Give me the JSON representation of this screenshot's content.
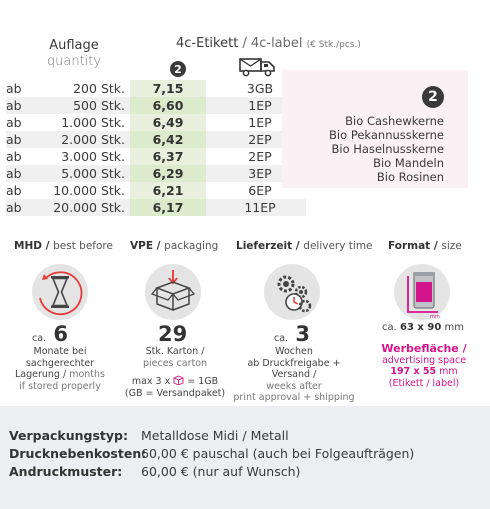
{
  "header": {
    "qty_de": "Auflage",
    "qty_en": "quantity",
    "label_de": "4c-Etikett",
    "label_sep": " / ",
    "label_en": "4c-label",
    "label_unit": "(€ Stk./pcs.)",
    "marker": "2"
  },
  "rows": [
    {
      "ab": "ab",
      "qty": "200 Stk.",
      "price": "7,15",
      "ship": "3GB"
    },
    {
      "ab": "ab",
      "qty": "500 Stk.",
      "price": "6,60",
      "ship": "1EP"
    },
    {
      "ab": "ab",
      "qty": "1.000 Stk.",
      "price": "6,49",
      "ship": "1EP"
    },
    {
      "ab": "ab",
      "qty": "2.000 Stk.",
      "price": "6,42",
      "ship": "2EP"
    },
    {
      "ab": "ab",
      "qty": "3.000 Stk.",
      "price": "6,37",
      "ship": "2EP"
    },
    {
      "ab": "ab",
      "qty": "5.000 Stk.",
      "price": "6,29",
      "ship": "3EP"
    },
    {
      "ab": "ab",
      "qty": "10.000 Stk.",
      "price": "6,21",
      "ship": "6EP"
    },
    {
      "ab": "ab",
      "qty": "20.000 Stk.",
      "price": "6,17",
      "ship": "11EP"
    }
  ],
  "ingredients": {
    "marker": "2",
    "items": [
      "Bio Cashewkerne",
      "Bio Pekannusskerne",
      "Bio Haselnusskerne",
      "Bio Mandeln",
      "Bio Rosinen"
    ]
  },
  "mhd": {
    "title_de": "MHD",
    "title_en": "best before",
    "ca": "ca.",
    "value": "6",
    "l1": "Monate bei",
    "l2": "sachgerechter",
    "l3_de": "Lagerung /",
    "l3_en": "months",
    "l4": "if stored properly"
  },
  "vpe": {
    "title_de": "VPE",
    "title_en": "packaging",
    "value": "29",
    "l1": "Stk. Karton /",
    "l2": "pieces carton",
    "l3a": "max 3 x",
    "l3b": "= 1GB",
    "l4": "(GB = Versandpaket)"
  },
  "lieferzeit": {
    "title_de": "Lieferzeit",
    "title_en": "delivery time",
    "ca": "ca.",
    "value": "3",
    "l1": "Wochen",
    "l2": "ab Druckfreigabe + Versand /",
    "l3": "weeks after",
    "l4": "print approval + shipping"
  },
  "format": {
    "title_de": "Format",
    "title_en": "size",
    "size_ca": "ca.",
    "size": "63 x 90",
    "size_unit": "mm",
    "mm_label": "mm",
    "werbe_de": "Werbefläche",
    "werbe_en": "advertising space",
    "werbe_size": "197 x 55",
    "werbe_unit": "mm",
    "werbe_note": "(Etikett / label)"
  },
  "bottom": [
    {
      "key": "Verpackungstyp:",
      "value": "Metalldose Midi / Metall"
    },
    {
      "key": "Drucknebenkosten:",
      "value": "60,00 € pauschal (auch bei Folgeaufträgen)"
    },
    {
      "key": "Andruckmuster:",
      "value": "60,00 € (nur auf Wunsch)"
    }
  ],
  "colors": {
    "accent_pink": "#d4148a",
    "price_green": "#e9f1de",
    "pink_box": "#fbf0f3",
    "footer_bg": "#eceef2"
  }
}
